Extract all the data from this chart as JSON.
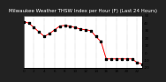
{
  "title": "Milwaukee Weather THSW Index per Hour (F) (Last 24 Hours)",
  "bg_color": "#222222",
  "plot_bg": "#ffffff",
  "line_color": "#ff0000",
  "marker_color": "#000000",
  "grid_color": "#888888",
  "ylim": [
    -20,
    50
  ],
  "yticks": [
    50,
    40,
    30,
    20,
    10,
    0,
    -10,
    -20
  ],
  "ytick_labels": [
    "50",
    "40",
    "30",
    "20",
    "10",
    "0",
    "-10",
    "-20"
  ],
  "xlim": [
    0,
    23
  ],
  "hours": [
    0,
    1,
    2,
    3,
    4,
    5,
    6,
    7,
    8,
    9,
    10,
    11,
    12,
    13,
    14,
    15,
    16,
    17,
    18,
    19,
    20,
    21,
    22,
    23
  ],
  "values": [
    42,
    40,
    34,
    28,
    22,
    26,
    31,
    36,
    37,
    36,
    34,
    32,
    31,
    30,
    22,
    15,
    -8,
    -8,
    -8,
    -8,
    -8,
    -8,
    -13,
    -15
  ],
  "title_fontsize": 4.0,
  "tick_fontsize": 3.0,
  "grid_positions": [
    2,
    4,
    6,
    8,
    10,
    12,
    14,
    16,
    18,
    20,
    22
  ]
}
